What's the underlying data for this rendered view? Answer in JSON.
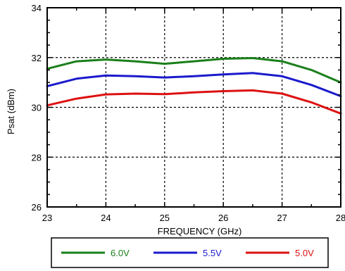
{
  "chart_data": {
    "type": "line",
    "xlabel": "FREQUENCY (GHz)",
    "ylabel": "Psat (dBm)",
    "xlim": [
      23,
      28
    ],
    "ylim": [
      26,
      34
    ],
    "x_ticks": [
      23,
      24,
      25,
      26,
      27,
      28
    ],
    "y_ticks": [
      26,
      28,
      30,
      32,
      34
    ],
    "grid": true,
    "grid_style": "dotted",
    "legend_position": "bottom",
    "x": [
      23,
      23.5,
      24,
      24.5,
      25,
      25.5,
      26,
      26.5,
      27,
      27.5,
      28
    ],
    "series": [
      {
        "name": "6.0V",
        "color": "#1a7f1a",
        "values": [
          31.55,
          31.85,
          31.92,
          31.85,
          31.75,
          31.85,
          31.95,
          31.98,
          31.85,
          31.5,
          31.0
        ]
      },
      {
        "name": "5.5V",
        "color": "#1a1acc",
        "values": [
          30.85,
          31.15,
          31.28,
          31.25,
          31.2,
          31.25,
          31.32,
          31.38,
          31.25,
          30.9,
          30.45
        ]
      },
      {
        "name": "5.0V",
        "color": "#dd1111",
        "values": [
          30.08,
          30.35,
          30.52,
          30.55,
          30.53,
          30.6,
          30.65,
          30.68,
          30.55,
          30.2,
          29.75
        ]
      }
    ]
  }
}
